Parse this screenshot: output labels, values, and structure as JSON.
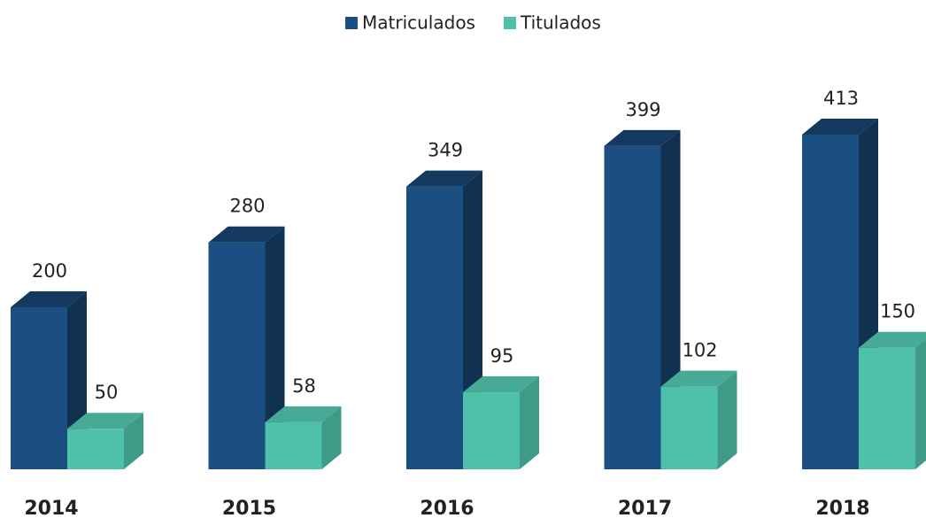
{
  "chart_data": {
    "type": "bar3d",
    "categories": [
      "2014",
      "2015",
      "2016",
      "2017",
      "2018"
    ],
    "series": [
      {
        "name": "Matriculados",
        "color": "#1b4f82",
        "values": [
          200,
          280,
          349,
          399,
          413
        ]
      },
      {
        "name": "Titulados",
        "color": "#4fc1aa",
        "values": [
          50,
          58,
          95,
          102,
          150
        ]
      }
    ],
    "legend": "top"
  }
}
